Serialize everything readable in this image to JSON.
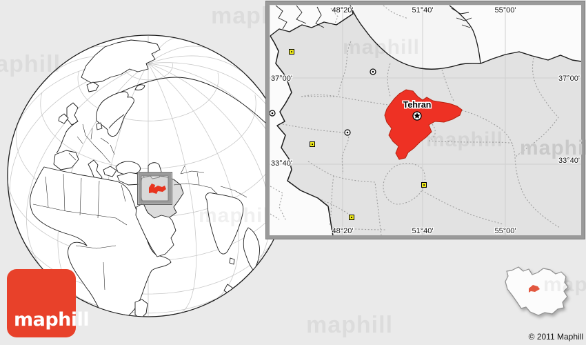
{
  "colors": {
    "page_bg": "#eaeaea",
    "frame_gray": "#9a9a9a",
    "logo_red": "#e8412a",
    "highlight": "#ee3124",
    "globe_highlight": "#e8341f",
    "minimap_highlight": "#e2573f",
    "iran_fill": "#e2e2e2",
    "sea_white": "#f5f5f5",
    "graticule": "#c8c8c8"
  },
  "watermarks": {
    "text": "maphill"
  },
  "branding": {
    "logo_text": "maphill",
    "copyright": "© 2011 Maphill"
  },
  "globe": {
    "highlighted_region": "Tehran",
    "highlighted_country": "Iran"
  },
  "inset": {
    "city": {
      "label": "Tehran"
    },
    "highlight_region": "Tehran",
    "labels": {
      "top": [
        "48°20'",
        "51°40'",
        "55°00'"
      ],
      "bottom": [
        "48°20'",
        "51°40'",
        "55°00'"
      ],
      "left": [
        "37°00'",
        "33°40'"
      ],
      "right": [
        "37°00'",
        "33°40'"
      ]
    }
  },
  "minimap": {
    "country": "Iran"
  }
}
